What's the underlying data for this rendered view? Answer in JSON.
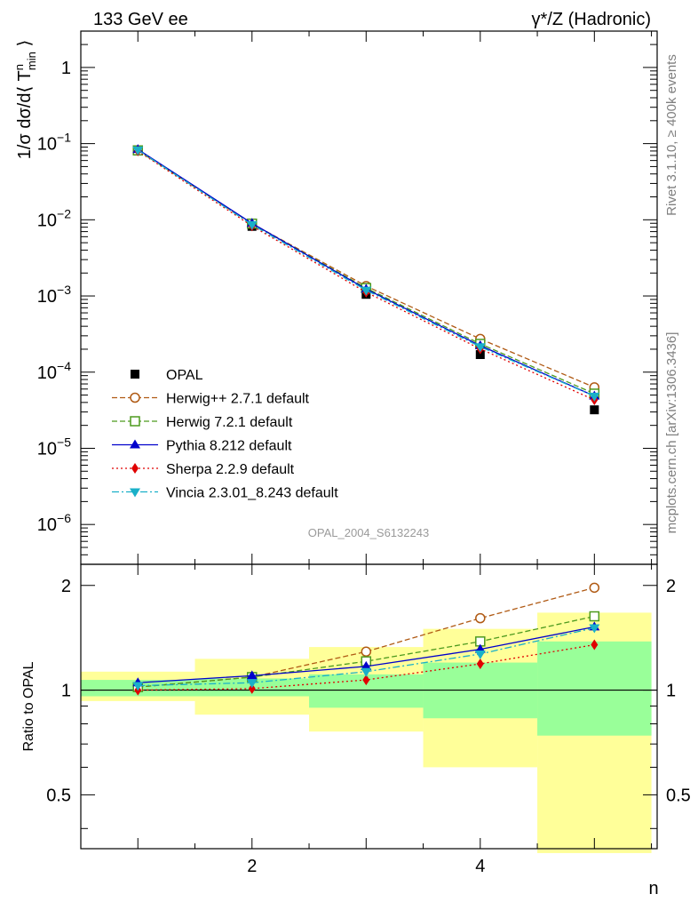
{
  "header": {
    "left_title": "133 GeV ee",
    "right_title": "γ*/Z (Hadronic)"
  },
  "side": {
    "rivet": "Rivet 3.1.10, ≥ 400k events",
    "mcplots": "mcplots.cern.ch [arXiv:1306.3436]"
  },
  "watermark": "OPAL_2004_S6132243",
  "chart_data": {
    "type": "line",
    "title": "γ*/Z (Hadronic)",
    "xlabel": "n",
    "ylabel_main": "1/σ dσ/d⟨ T^n_min ⟩",
    "ylabel_ratio": "Ratio to OPAL",
    "x": [
      1,
      2,
      3,
      4,
      5
    ],
    "xlim": [
      0.5,
      5.55
    ],
    "ylim_main": [
      3e-07,
      3
    ],
    "ylim_ratio": [
      0.35,
      2.3
    ],
    "y_scale": "log",
    "ratio_scale": "log",
    "x_ticks": [
      "2",
      "4"
    ],
    "y_ticks_main": [
      {
        "value": 1,
        "base": "1",
        "exp": ""
      },
      {
        "value": 0.1,
        "base": "10",
        "exp": "−1"
      },
      {
        "value": 0.01,
        "base": "10",
        "exp": "−2"
      },
      {
        "value": 0.001,
        "base": "10",
        "exp": "−3"
      },
      {
        "value": 0.0001,
        "base": "10",
        "exp": "−4"
      },
      {
        "value": 1e-05,
        "base": "10",
        "exp": "−5"
      },
      {
        "value": 1e-06,
        "base": "10",
        "exp": "−6"
      }
    ],
    "y_ticks_ratio": [
      {
        "value": 2,
        "label": "2"
      },
      {
        "value": 1,
        "label": "1"
      },
      {
        "value": 0.5,
        "label": "0.5"
      }
    ],
    "bins": [
      [
        0.5,
        1.5
      ],
      [
        1.5,
        2.5
      ],
      [
        2.5,
        3.5
      ],
      [
        3.5,
        4.5
      ],
      [
        4.5,
        5.5
      ]
    ],
    "data": {
      "name": "OPAL",
      "values": [
        0.08,
        0.0082,
        0.00105,
        0.00017,
        3.2e-05
      ]
    },
    "band_inner": [
      [
        0.96,
        1.07
      ],
      [
        0.96,
        1.08
      ],
      [
        0.89,
        1.11
      ],
      [
        0.83,
        1.2
      ],
      [
        0.74,
        1.38
      ]
    ],
    "band_outer": [
      [
        0.93,
        1.13
      ],
      [
        0.85,
        1.23
      ],
      [
        0.76,
        1.33
      ],
      [
        0.6,
        1.5
      ],
      [
        0.34,
        1.67
      ]
    ],
    "series": [
      {
        "name": "Herwig++ 2.7.1 default",
        "color": "#b05a14",
        "dash": "6,3",
        "marker": "circle-open",
        "values": [
          0.0813,
          0.0089,
          0.00135,
          0.000273,
          6.32e-05
        ],
        "ratio": [
          1.02,
          1.09,
          1.29,
          1.61,
          1.97
        ]
      },
      {
        "name": "Herwig 7.2.1 default",
        "color": "#4d9a1e",
        "dash": "6,3",
        "marker": "square-open",
        "values": [
          0.0815,
          0.0089,
          0.00127,
          0.000235,
          5.22e-05
        ],
        "ratio": [
          1.02,
          1.09,
          1.21,
          1.38,
          1.63
        ]
      },
      {
        "name": "Pythia 8.212 default",
        "color": "#0000cc",
        "dash": "",
        "marker": "triangle-up",
        "values": [
          0.084,
          0.00899,
          0.00123,
          0.000223,
          4.86e-05
        ],
        "ratio": [
          1.05,
          1.1,
          1.17,
          1.31,
          1.52
        ]
      },
      {
        "name": "Sherpa 2.2.9 default",
        "color": "#e00000",
        "dash": "2,3",
        "marker": "diamond",
        "values": [
          0.08,
          0.0083,
          0.00112,
          0.000202,
          4.32e-05
        ],
        "ratio": [
          1.0,
          1.01,
          1.07,
          1.19,
          1.35
        ]
      },
      {
        "name": "Vincia 2.3.01_8.243 default",
        "color": "#1ab0c8",
        "dash": "8,3,2,3",
        "marker": "triangle-down",
        "values": [
          0.0824,
          0.00862,
          0.00119,
          0.000215,
          4.83e-05
        ],
        "ratio": [
          1.03,
          1.05,
          1.13,
          1.27,
          1.51
        ]
      }
    ]
  }
}
